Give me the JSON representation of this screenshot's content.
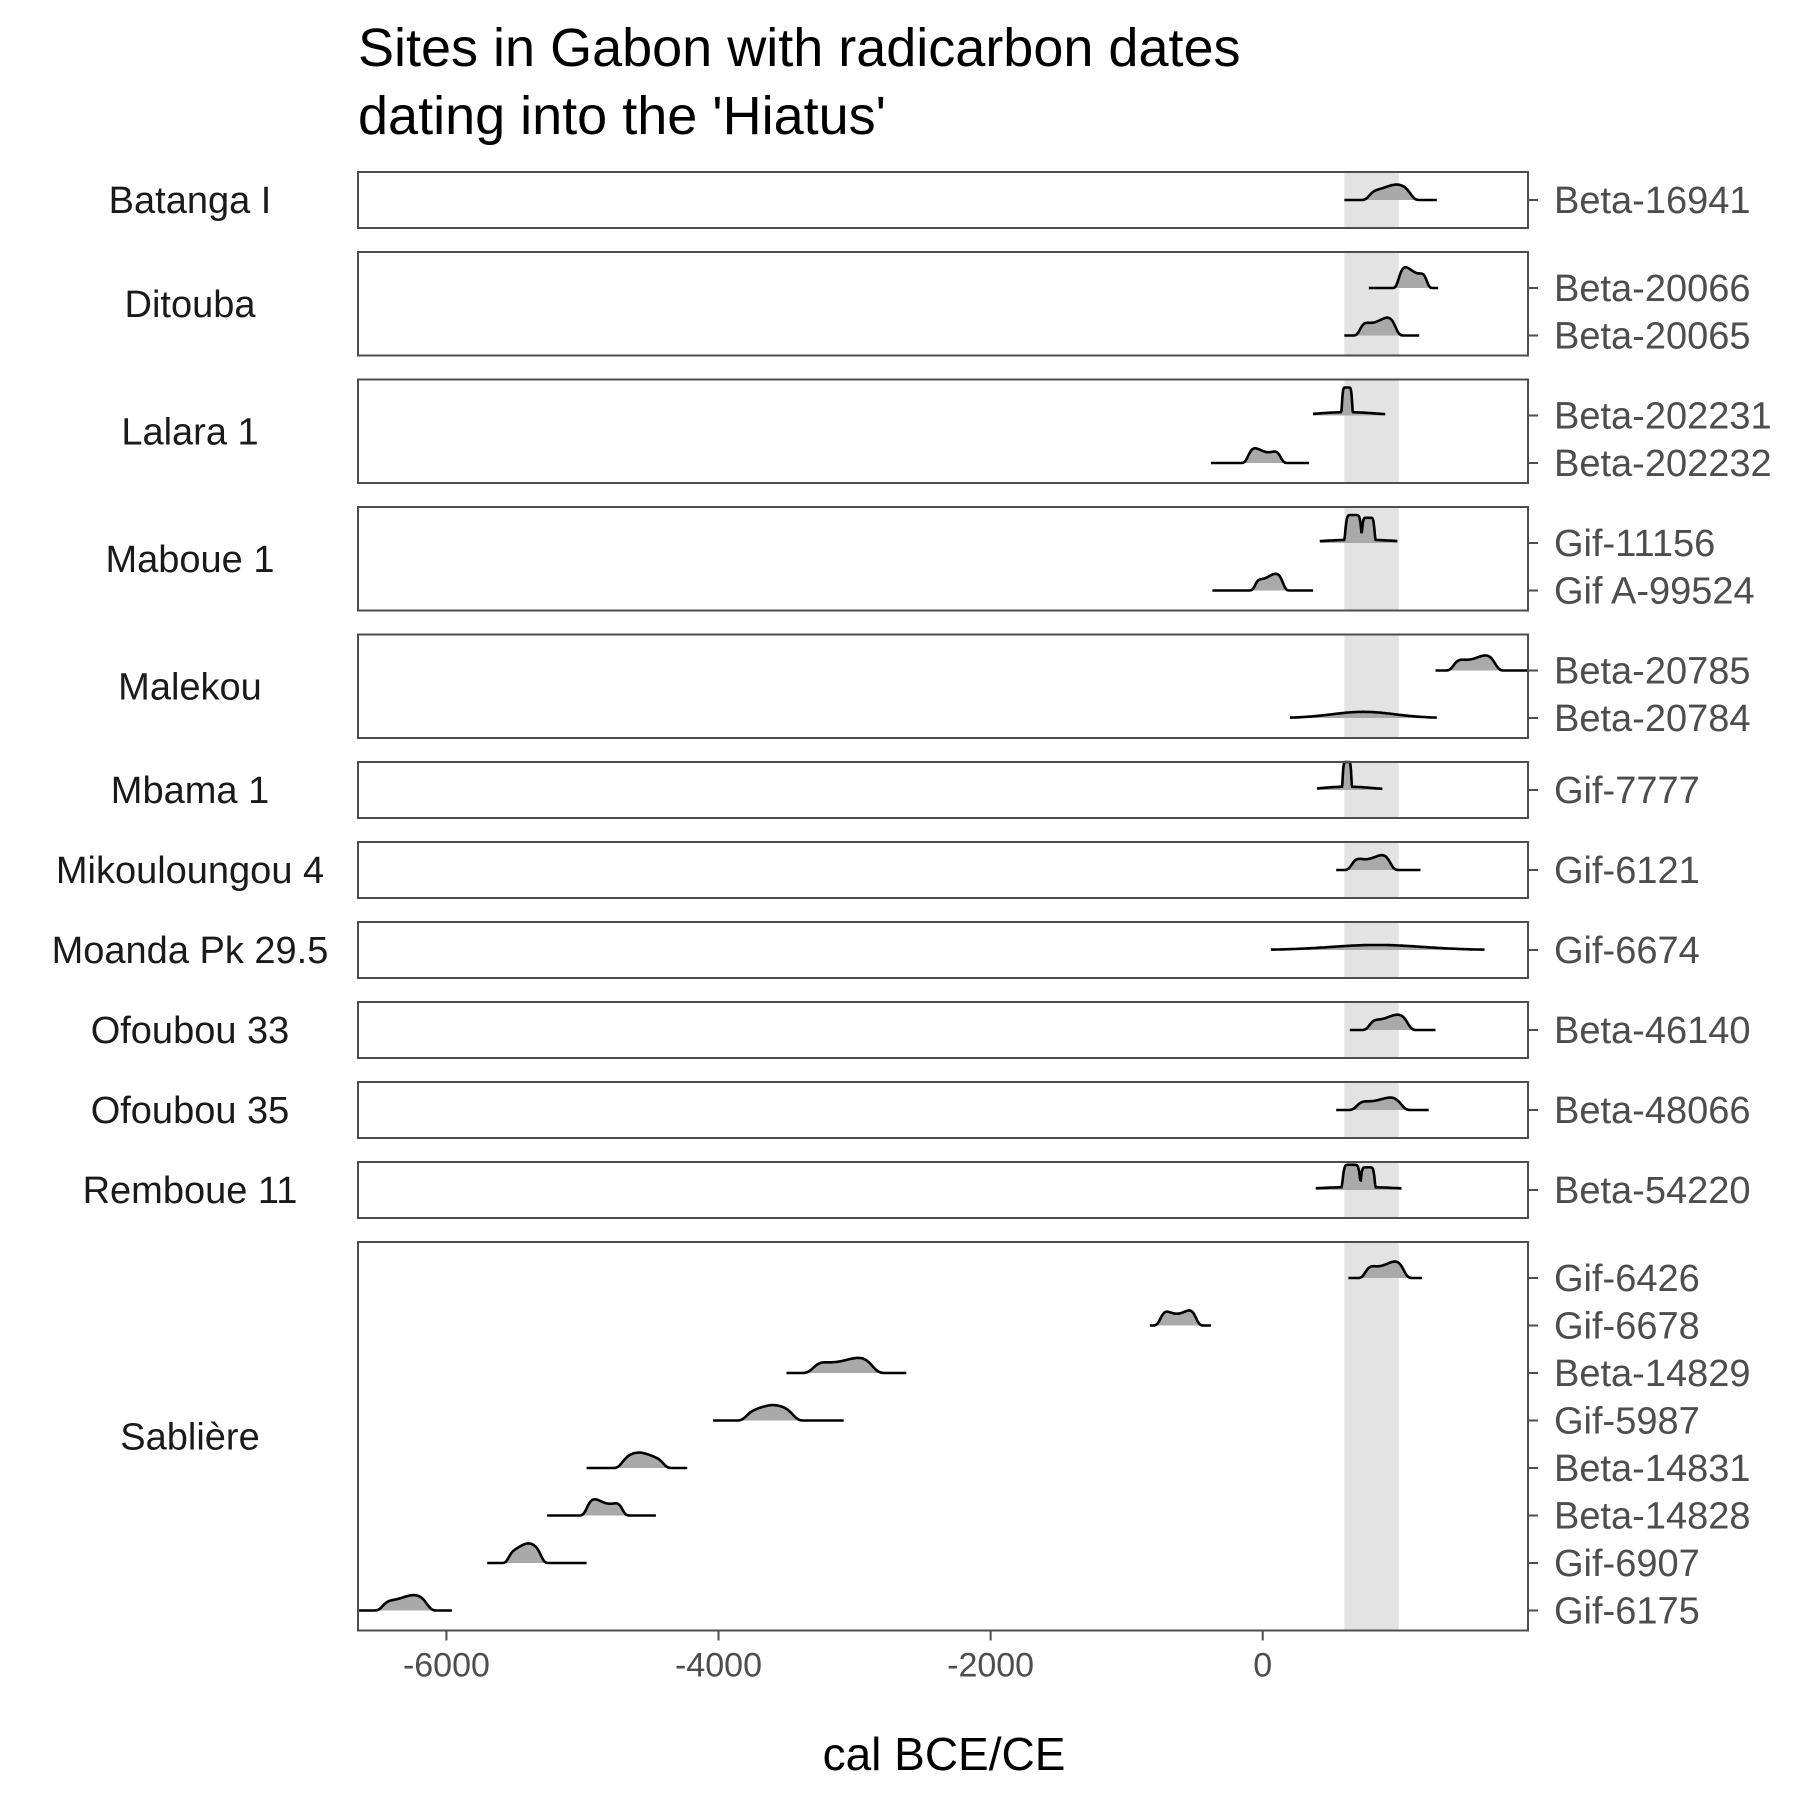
{
  "chart_data": {
    "type": "ridgeline",
    "title_lines": [
      "Sites in Gabon with radicarbon dates",
      "dating into the 'Hiatus'"
    ],
    "xlabel": "cal BCE/CE",
    "xlim": [
      -6650,
      1950
    ],
    "x_ticks": [
      -6000,
      -4000,
      -2000,
      0
    ],
    "x_tick_labels": [
      "-6000",
      "-4000",
      "-2000",
      "0"
    ],
    "hiatus_band": [
      600,
      1000
    ],
    "colors": {
      "band": "#e3e3e3",
      "fill": "#a9a9a9",
      "line": "#000000",
      "frame": "#4d4d4d"
    },
    "panels": [
      {
        "site": "Batanga I",
        "dates": [
          {
            "lab": "Beta-16941",
            "start": 600,
            "end": 1280,
            "peak": 940,
            "width": 140,
            "height": 0.55,
            "shape": "plateau"
          }
        ]
      },
      {
        "site": "Ditouba",
        "dates": [
          {
            "lab": "Beta-20066",
            "start": 780,
            "end": 1290,
            "peak": 1100,
            "width": 95,
            "height": 0.75,
            "shape": "plateau"
          },
          {
            "lab": "Beta-20065",
            "start": 600,
            "end": 1150,
            "peak": 850,
            "width": 120,
            "height": 0.65,
            "shape": "plateau"
          }
        ]
      },
      {
        "site": "Lalara 1",
        "dates": [
          {
            "lab": "Beta-202231",
            "start": 370,
            "end": 900,
            "peak": 620,
            "width": 35,
            "height": 1.0,
            "shape": "spike"
          },
          {
            "lab": "Beta-202232",
            "start": -380,
            "end": 340,
            "peak": 10,
            "width": 110,
            "height": 0.55,
            "shape": "plateau"
          }
        ]
      },
      {
        "site": "Maboue 1",
        "dates": [
          {
            "lab": "Gif-11156",
            "start": 420,
            "end": 990,
            "peak": 710,
            "width": 55,
            "height": 1.0,
            "shape": "double"
          },
          {
            "lab": "Gif A-99524",
            "start": -370,
            "end": 370,
            "peak": 50,
            "width": 95,
            "height": 0.6,
            "shape": "plateau"
          }
        ]
      },
      {
        "site": "Malekou",
        "dates": [
          {
            "lab": "Beta-20785",
            "start": 1270,
            "end": 1950,
            "peak": 1560,
            "width": 140,
            "height": 0.55,
            "shape": "plateau"
          },
          {
            "lab": "Beta-20784",
            "start": 200,
            "end": 1280,
            "peak": 740,
            "width": 230,
            "height": 0.22,
            "shape": "smooth"
          }
        ]
      },
      {
        "site": "Mbama 1",
        "dates": [
          {
            "lab": "Gif-7777",
            "start": 400,
            "end": 880,
            "peak": 620,
            "width": 30,
            "height": 1.0,
            "shape": "spike"
          }
        ]
      },
      {
        "site": "Mikouloungou 4",
        "dates": [
          {
            "lab": "Gif-6121",
            "start": 540,
            "end": 1160,
            "peak": 800,
            "width": 130,
            "height": 0.55,
            "shape": "plateau"
          }
        ]
      },
      {
        "site": "Moanda Pk 29.5",
        "dates": [
          {
            "lab": "Gif-6674",
            "start": 60,
            "end": 1630,
            "peak": 840,
            "width": 340,
            "height": 0.18,
            "shape": "smooth"
          }
        ]
      },
      {
        "site": "Ofoubou 33",
        "dates": [
          {
            "lab": "Beta-46140",
            "start": 640,
            "end": 1270,
            "peak": 930,
            "width": 130,
            "height": 0.55,
            "shape": "plateau"
          }
        ]
      },
      {
        "site": "Ofoubou 35",
        "dates": [
          {
            "lab": "Beta-48066",
            "start": 540,
            "end": 1220,
            "peak": 860,
            "width": 150,
            "height": 0.45,
            "shape": "plateau"
          }
        ]
      },
      {
        "site": "Remboue 11",
        "dates": [
          {
            "lab": "Beta-54220",
            "start": 390,
            "end": 1020,
            "peak": 700,
            "width": 60,
            "height": 0.9,
            "shape": "double"
          }
        ]
      },
      {
        "site": "Sablière",
        "dates": [
          {
            "lab": "Gif-6426",
            "start": 630,
            "end": 1170,
            "peak": 900,
            "width": 130,
            "height": 0.6,
            "shape": "plateau"
          },
          {
            "lab": "Gif-6678",
            "start": -830,
            "end": -380,
            "peak": -620,
            "width": 120,
            "height": 0.6,
            "shape": "plateau"
          },
          {
            "lab": "Beta-14829",
            "start": -3500,
            "end": -2620,
            "peak": -3080,
            "width": 200,
            "height": 0.55,
            "shape": "plateau"
          },
          {
            "lab": "Gif-5987",
            "start": -4040,
            "end": -3080,
            "peak": -3620,
            "width": 160,
            "height": 0.55,
            "shape": "plateau"
          },
          {
            "lab": "Beta-14831",
            "start": -4970,
            "end": -4230,
            "peak": -4560,
            "width": 140,
            "height": 0.55,
            "shape": "plateau"
          },
          {
            "lab": "Beta-14828",
            "start": -5260,
            "end": -4460,
            "peak": -4840,
            "width": 120,
            "height": 0.6,
            "shape": "plateau"
          },
          {
            "lab": "Gif-6907",
            "start": -5700,
            "end": -4970,
            "peak": -5420,
            "width": 110,
            "height": 0.7,
            "shape": "plateau"
          },
          {
            "lab": "Gif-6175",
            "start": -6650,
            "end": -5960,
            "peak": -6300,
            "width": 150,
            "height": 0.55,
            "shape": "plateau"
          }
        ]
      }
    ]
  }
}
